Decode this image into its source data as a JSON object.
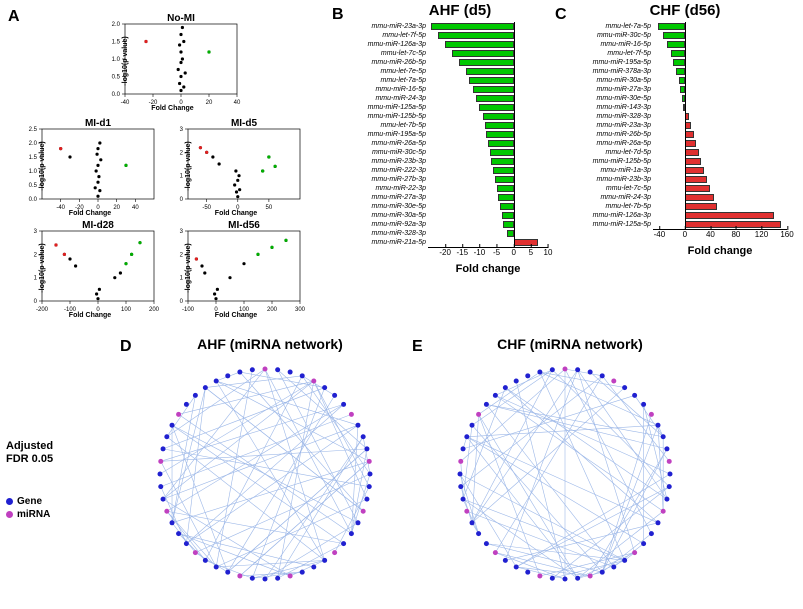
{
  "panelA": {
    "label": "A",
    "volcanoes": [
      {
        "title": "No-MI",
        "xlim": [
          -40,
          40
        ],
        "ylim": [
          0,
          2.0
        ],
        "xticks": [
          -40,
          -20,
          0,
          20,
          40
        ],
        "yticks": [
          "0.0",
          "0.5",
          "1.0",
          "1.5",
          "2.0"
        ],
        "points": [
          [
            0,
            0.1
          ],
          [
            2,
            0.2
          ],
          [
            -1,
            0.3
          ],
          [
            0,
            0.5
          ],
          [
            3,
            0.6
          ],
          [
            -2,
            0.7
          ],
          [
            0,
            0.9
          ],
          [
            1,
            1.0
          ],
          [
            0,
            1.2
          ],
          [
            -1,
            1.4
          ],
          [
            2,
            1.5
          ],
          [
            0,
            1.7
          ],
          [
            1,
            1.9
          ],
          [
            -25,
            1.5
          ],
          [
            20,
            1.2
          ]
        ],
        "red": [
          [
            -25,
            1.5
          ]
        ],
        "green": [
          [
            20,
            1.2
          ]
        ]
      },
      {
        "title": "MI-d1",
        "xlim": [
          -60,
          60
        ],
        "ylim": [
          0,
          2.5
        ],
        "xticks": [
          -40,
          -20,
          0,
          20,
          40
        ],
        "yticks": [
          "0.0",
          "0.5",
          "1.0",
          "1.5",
          "2.0",
          "2.5"
        ],
        "points": [
          [
            0,
            0.1
          ],
          [
            2,
            0.3
          ],
          [
            -3,
            0.4
          ],
          [
            0,
            0.6
          ],
          [
            1,
            0.8
          ],
          [
            -2,
            1.0
          ],
          [
            0,
            1.2
          ],
          [
            3,
            1.4
          ],
          [
            -1,
            1.6
          ],
          [
            0,
            1.8
          ],
          [
            2,
            2.0
          ],
          [
            -30,
            1.5
          ],
          [
            -40,
            1.8
          ],
          [
            30,
            1.2
          ]
        ],
        "red": [
          [
            -40,
            1.8
          ]
        ],
        "green": [
          [
            30,
            1.2
          ]
        ]
      },
      {
        "title": "MI-d5",
        "xlim": [
          -80,
          100
        ],
        "ylim": [
          0,
          3.0
        ],
        "xticks": [
          -50,
          0,
          50
        ],
        "yticks": [
          "0",
          "1",
          "2",
          "3"
        ],
        "points": [
          [
            0,
            0.1
          ],
          [
            -2,
            0.3
          ],
          [
            3,
            0.4
          ],
          [
            -5,
            0.6
          ],
          [
            0,
            0.8
          ],
          [
            2,
            1.0
          ],
          [
            -3,
            1.2
          ],
          [
            -40,
            1.8
          ],
          [
            -50,
            2.0
          ],
          [
            -30,
            1.5
          ],
          [
            -60,
            2.2
          ],
          [
            60,
            1.4
          ],
          [
            40,
            1.2
          ],
          [
            50,
            1.8
          ]
        ],
        "red": [
          [
            -60,
            2.2
          ],
          [
            -50,
            2.0
          ]
        ],
        "green": [
          [
            60,
            1.4
          ],
          [
            50,
            1.8
          ],
          [
            40,
            1.2
          ]
        ]
      },
      {
        "title": "MI-d28",
        "xlim": [
          -200,
          200
        ],
        "ylim": [
          0,
          3.0
        ],
        "xticks": [
          -200,
          -100,
          0,
          100,
          200
        ],
        "yticks": [
          "0",
          "1",
          "2",
          "3"
        ],
        "points": [
          [
            0,
            0.1
          ],
          [
            -5,
            0.3
          ],
          [
            5,
            0.5
          ],
          [
            -100,
            1.8
          ],
          [
            -120,
            2.0
          ],
          [
            -80,
            1.5
          ],
          [
            -150,
            2.4
          ],
          [
            100,
            1.6
          ],
          [
            120,
            2.0
          ],
          [
            80,
            1.2
          ],
          [
            150,
            2.5
          ],
          [
            60,
            1.0
          ]
        ],
        "red": [
          [
            -150,
            2.4
          ],
          [
            -120,
            2.0
          ]
        ],
        "green": [
          [
            150,
            2.5
          ],
          [
            120,
            2.0
          ],
          [
            100,
            1.6
          ]
        ]
      },
      {
        "title": "MI-d56",
        "xlim": [
          -100,
          300
        ],
        "ylim": [
          0,
          3.0
        ],
        "xticks": [
          -100,
          0,
          100,
          200,
          300
        ],
        "yticks": [
          "0",
          "1",
          "2",
          "3"
        ],
        "points": [
          [
            0,
            0.1
          ],
          [
            -5,
            0.3
          ],
          [
            5,
            0.5
          ],
          [
            -50,
            1.5
          ],
          [
            -70,
            1.8
          ],
          [
            -40,
            1.2
          ],
          [
            100,
            1.6
          ],
          [
            150,
            2.0
          ],
          [
            200,
            2.3
          ],
          [
            250,
            2.6
          ],
          [
            50,
            1.0
          ]
        ],
        "red": [
          [
            -70,
            1.8
          ]
        ],
        "green": [
          [
            250,
            2.6
          ],
          [
            200,
            2.3
          ],
          [
            150,
            2.0
          ]
        ]
      }
    ],
    "ylabel": "-log10(p value)",
    "xlabel": "Fold Change"
  },
  "panelB": {
    "label": "B",
    "title": "AHF (d5)",
    "xlim": [
      -25,
      10
    ],
    "xticks": [
      -20,
      -15,
      -10,
      -5,
      0,
      5,
      10
    ],
    "xlabel": "Fold change",
    "green": "#00c800",
    "red": "#e03030",
    "bars": [
      {
        "label": "mmu-miR-23a-3p",
        "value": -24
      },
      {
        "label": "mmu-let-7f-5p",
        "value": -22
      },
      {
        "label": "mmu-miR-126a-3p",
        "value": -20
      },
      {
        "label": "mmu-let-7c-5p",
        "value": -18
      },
      {
        "label": "mmu-miR-26b-5p",
        "value": -16
      },
      {
        "label": "mmu-let-7e-5p",
        "value": -14
      },
      {
        "label": "mmu-let-7a-5p",
        "value": -13
      },
      {
        "label": "mmu-miR-16-5p",
        "value": -12
      },
      {
        "label": "mmu-miR-24-3p",
        "value": -11
      },
      {
        "label": "mmu-miR-125a-5p",
        "value": -10
      },
      {
        "label": "mmu-miR-125b-5p",
        "value": -9
      },
      {
        "label": "mmu-let-7b-5p",
        "value": -8.5
      },
      {
        "label": "mmu-miR-195a-5p",
        "value": -8
      },
      {
        "label": "mmu-miR-26a-5p",
        "value": -7.5
      },
      {
        "label": "mmu-miR-30c-5p",
        "value": -7
      },
      {
        "label": "mmu-miR-23b-3p",
        "value": -6.5
      },
      {
        "label": "mmu-miR-222-3p",
        "value": -6
      },
      {
        "label": "mmu-miR-27b-3p",
        "value": -5.5
      },
      {
        "label": "mmu-miR-22-3p",
        "value": -5
      },
      {
        "label": "mmu-miR-27a-3p",
        "value": -4.5
      },
      {
        "label": "mmu-miR-30e-5p",
        "value": -4
      },
      {
        "label": "mmu-miR-30a-5p",
        "value": -3.5
      },
      {
        "label": "mmu-miR-92a-3p",
        "value": -3
      },
      {
        "label": "mmu-miR-328-3p",
        "value": -2
      },
      {
        "label": "mmu-miR-21a-5p",
        "value": 7
      }
    ]
  },
  "panelC": {
    "label": "C",
    "title": "CHF (d56)",
    "xlim": [
      -50,
      160
    ],
    "xticks": [
      -40,
      0,
      40,
      80,
      120,
      160
    ],
    "xlabel": "Fold change",
    "green": "#00c800",
    "red": "#e03030",
    "bars": [
      {
        "label": "mmu-let-7a-5p",
        "value": -42
      },
      {
        "label": "mmu-miR-30c-5p",
        "value": -35
      },
      {
        "label": "mmu-miR-16-5p",
        "value": -28
      },
      {
        "label": "mmu-let-7f-5p",
        "value": -22
      },
      {
        "label": "mmu-miR-195a-5p",
        "value": -18
      },
      {
        "label": "mmu-miR-378a-3p",
        "value": -14
      },
      {
        "label": "mmu-miR-30a-5p",
        "value": -10
      },
      {
        "label": "mmu-miR-27a-3p",
        "value": -7
      },
      {
        "label": "mmu-miR-30e-5p",
        "value": -5
      },
      {
        "label": "mmu-miR-143-3p",
        "value": -3
      },
      {
        "label": "mmu-miR-328-3p",
        "value": 6
      },
      {
        "label": "mmu-miR-23a-3p",
        "value": 10
      },
      {
        "label": "mmu-miR-26b-5p",
        "value": 14
      },
      {
        "label": "mmu-miR-26a-5p",
        "value": 18
      },
      {
        "label": "mmu-let-7d-5p",
        "value": 22
      },
      {
        "label": "mmu-miR-125b-5p",
        "value": 26
      },
      {
        "label": "mmu-miR-1a-3p",
        "value": 30
      },
      {
        "label": "mmu-miR-23b-3p",
        "value": 35
      },
      {
        "label": "mmu-let-7c-5p",
        "value": 40
      },
      {
        "label": "mmu-miR-24-3p",
        "value": 45
      },
      {
        "label": "mmu-let-7b-5p",
        "value": 50
      },
      {
        "label": "mmu-miR-126a-3p",
        "value": 140
      },
      {
        "label": "mmu-miR-125a-5p",
        "value": 150
      }
    ]
  },
  "panelD": {
    "label": "D",
    "title": "AHF (miRNA network)"
  },
  "panelE": {
    "label": "E",
    "title": "CHF (miRNA network)"
  },
  "legend": {
    "title": "Adjusted FDR 0.05",
    "items": [
      {
        "label": "Gene",
        "color": "#2020d0"
      },
      {
        "label": "miRNA",
        "color": "#c040c0"
      }
    ]
  },
  "network": {
    "geneColor": "#2020d0",
    "mirnaColor": "#c040c0",
    "edgeColor": "#9db8e8",
    "nGenes": 40,
    "nMirna": 12,
    "nEdges": 80,
    "radius": 105
  }
}
